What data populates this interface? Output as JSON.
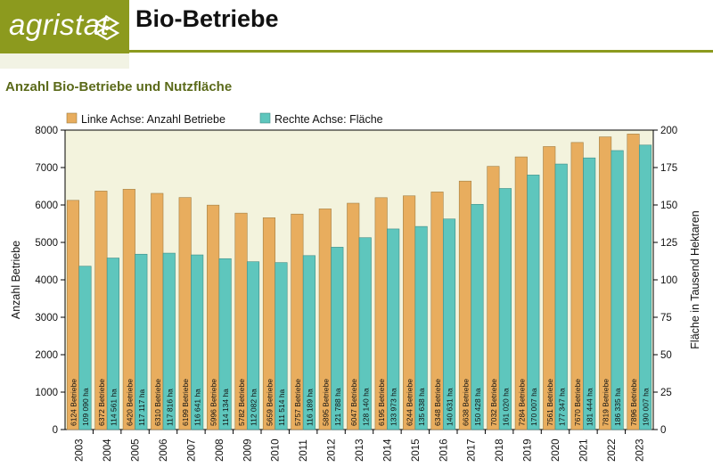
{
  "header": {
    "logo_text": "agristat",
    "title": "Bio-Betriebe"
  },
  "chart_data": {
    "type": "bar",
    "title": "Anzahl Bio-Betriebe und Nutzfläche",
    "categories": [
      "2003",
      "2004",
      "2005",
      "2006",
      "2007",
      "2008",
      "2009",
      "2010",
      "2011",
      "2012",
      "2013",
      "2014",
      "2015",
      "2016",
      "2017",
      "2018",
      "2019",
      "2020",
      "2021",
      "2022",
      "2023"
    ],
    "series": [
      {
        "name": "Linke Achse: Anzahl Betriebe",
        "axis": "left",
        "color": "#e8ad5e",
        "values": [
          6124,
          6372,
          6420,
          6310,
          6199,
          5996,
          5782,
          5659,
          5757,
          5895,
          6047,
          6195,
          6244,
          6348,
          6638,
          7032,
          7284,
          7561,
          7670,
          7819,
          7896
        ],
        "labels": [
          "6124 Betriebe",
          "6372 Betriebe",
          "6420 Betriebe",
          "6310 Betriebe",
          "6199 Betriebe",
          "5996 Betriebe",
          "5782 Betriebe",
          "5659 Betriebe",
          "5757 Betriebe",
          "5895 Betriebe",
          "6047 Betriebe",
          "6195 Betriebe",
          "6244 Betriebe",
          "6348 Betriebe",
          "6638 Betriebe",
          "7032 Betriebe",
          "7284 Betriebe",
          "7561 Betriebe",
          "7670 Betriebe",
          "7819 Betriebe",
          "7896 Betriebe"
        ]
      },
      {
        "name": "Rechte Achse: Fläche",
        "axis": "right",
        "color": "#5ec6bd",
        "values": [
          109090,
          114561,
          117117,
          117816,
          116641,
          114134,
          112082,
          111514,
          116189,
          121788,
          128140,
          133973,
          135638,
          140631,
          150428,
          161020,
          170007,
          177347,
          181444,
          186335,
          190007
        ],
        "labels": [
          "109 090 ha",
          "114 561 ha",
          "117 117 ha",
          "117 816 ha",
          "116 641 ha",
          "114 134 ha",
          "112 082 ha",
          "111 514 ha",
          "116 189 ha",
          "121 788 ha",
          "128 140 ha",
          "133 973 ha",
          "135 638 ha",
          "140 631 ha",
          "150 428 ha",
          "161 020 ha",
          "170 007 ha",
          "177 347 ha",
          "181 444 ha",
          "186 335 ha",
          "190 007 ha"
        ]
      }
    ],
    "y_left": {
      "label": "Anzahl Betriebe",
      "range": [
        0,
        8000
      ],
      "ticks": [
        "0",
        "1000",
        "2000",
        "3000",
        "4000",
        "5000",
        "6000",
        "7000",
        "8000"
      ]
    },
    "y_right": {
      "label": "Fläche in Tausend Hektaren",
      "range": [
        0,
        200
      ],
      "ticks": [
        "0",
        "25",
        "50",
        "75",
        "100",
        "125",
        "150",
        "175",
        "200"
      ]
    },
    "plot_background": "#f3f3dd",
    "grid": false,
    "legend_position": "top"
  }
}
